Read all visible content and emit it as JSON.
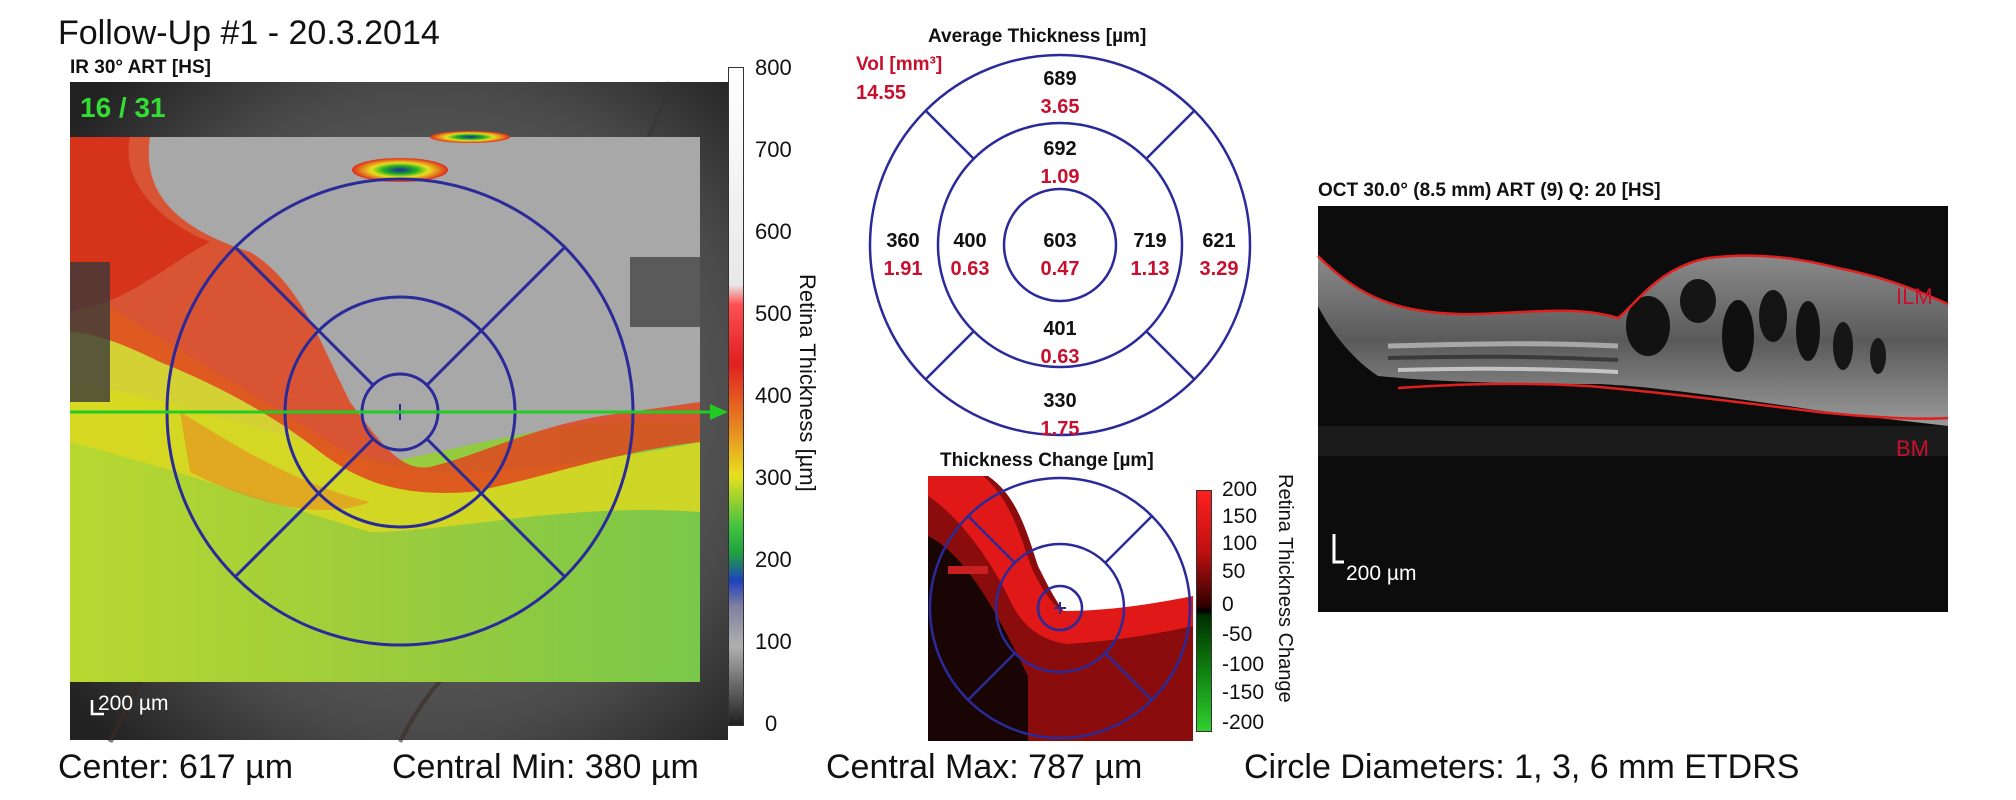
{
  "report": {
    "title": "Follow-Up #1 - 20.3.2014"
  },
  "fundus": {
    "label": "IR 30° ART [HS]",
    "frame_counter": "16 / 31",
    "scale_bar": "200 µm"
  },
  "thickness_colorbar": {
    "label": "Retina Thickness [µm]",
    "ticks": [
      "800",
      "700",
      "600",
      "500",
      "400",
      "300",
      "200",
      "100",
      "0"
    ]
  },
  "etdrs_average": {
    "title": "Average Thickness [µm]",
    "vol_label": "Vol [mm³]",
    "total_volume": "14.55",
    "sectors": {
      "outer_top": {
        "thickness": "689",
        "volume": "3.65"
      },
      "inner_top": {
        "thickness": "692",
        "volume": "1.09"
      },
      "outer_left": {
        "thickness": "360",
        "volume": "1.91"
      },
      "inner_left": {
        "thickness": "400",
        "volume": "0.63"
      },
      "center": {
        "thickness": "603",
        "volume": "0.47"
      },
      "inner_right": {
        "thickness": "719",
        "volume": "1.13"
      },
      "outer_right": {
        "thickness": "621",
        "volume": "3.29"
      },
      "inner_bottom": {
        "thickness": "401",
        "volume": "0.63"
      },
      "outer_bottom": {
        "thickness": "330",
        "volume": "1.75"
      }
    }
  },
  "thickness_change": {
    "title": "Thickness Change [µm]",
    "colorbar_label": "Retina Thickness Change",
    "ticks": [
      "200",
      "150",
      "100",
      "50",
      "0",
      "-50",
      "-100",
      "-150",
      "-200"
    ]
  },
  "oct": {
    "label": "OCT 30.0° (8.5 mm) ART (9) Q: 20 [HS]",
    "ilm_label": "ILM",
    "bm_label": "BM",
    "scale_bar": "200 µm"
  },
  "stats": {
    "center": "Center: 617 µm",
    "central_min": "Central Min: 380 µm",
    "central_max": "Central Max: 787 µm",
    "circle_diameters": "Circle Diameters:  1, 3, 6 mm ETDRS"
  },
  "colors": {
    "etdrs_lines": "#2a2a9a",
    "value_red": "#c8102e",
    "scan_line": "#22cc22",
    "counter_green": "#33dd33",
    "oct_segment": "#e02020"
  }
}
